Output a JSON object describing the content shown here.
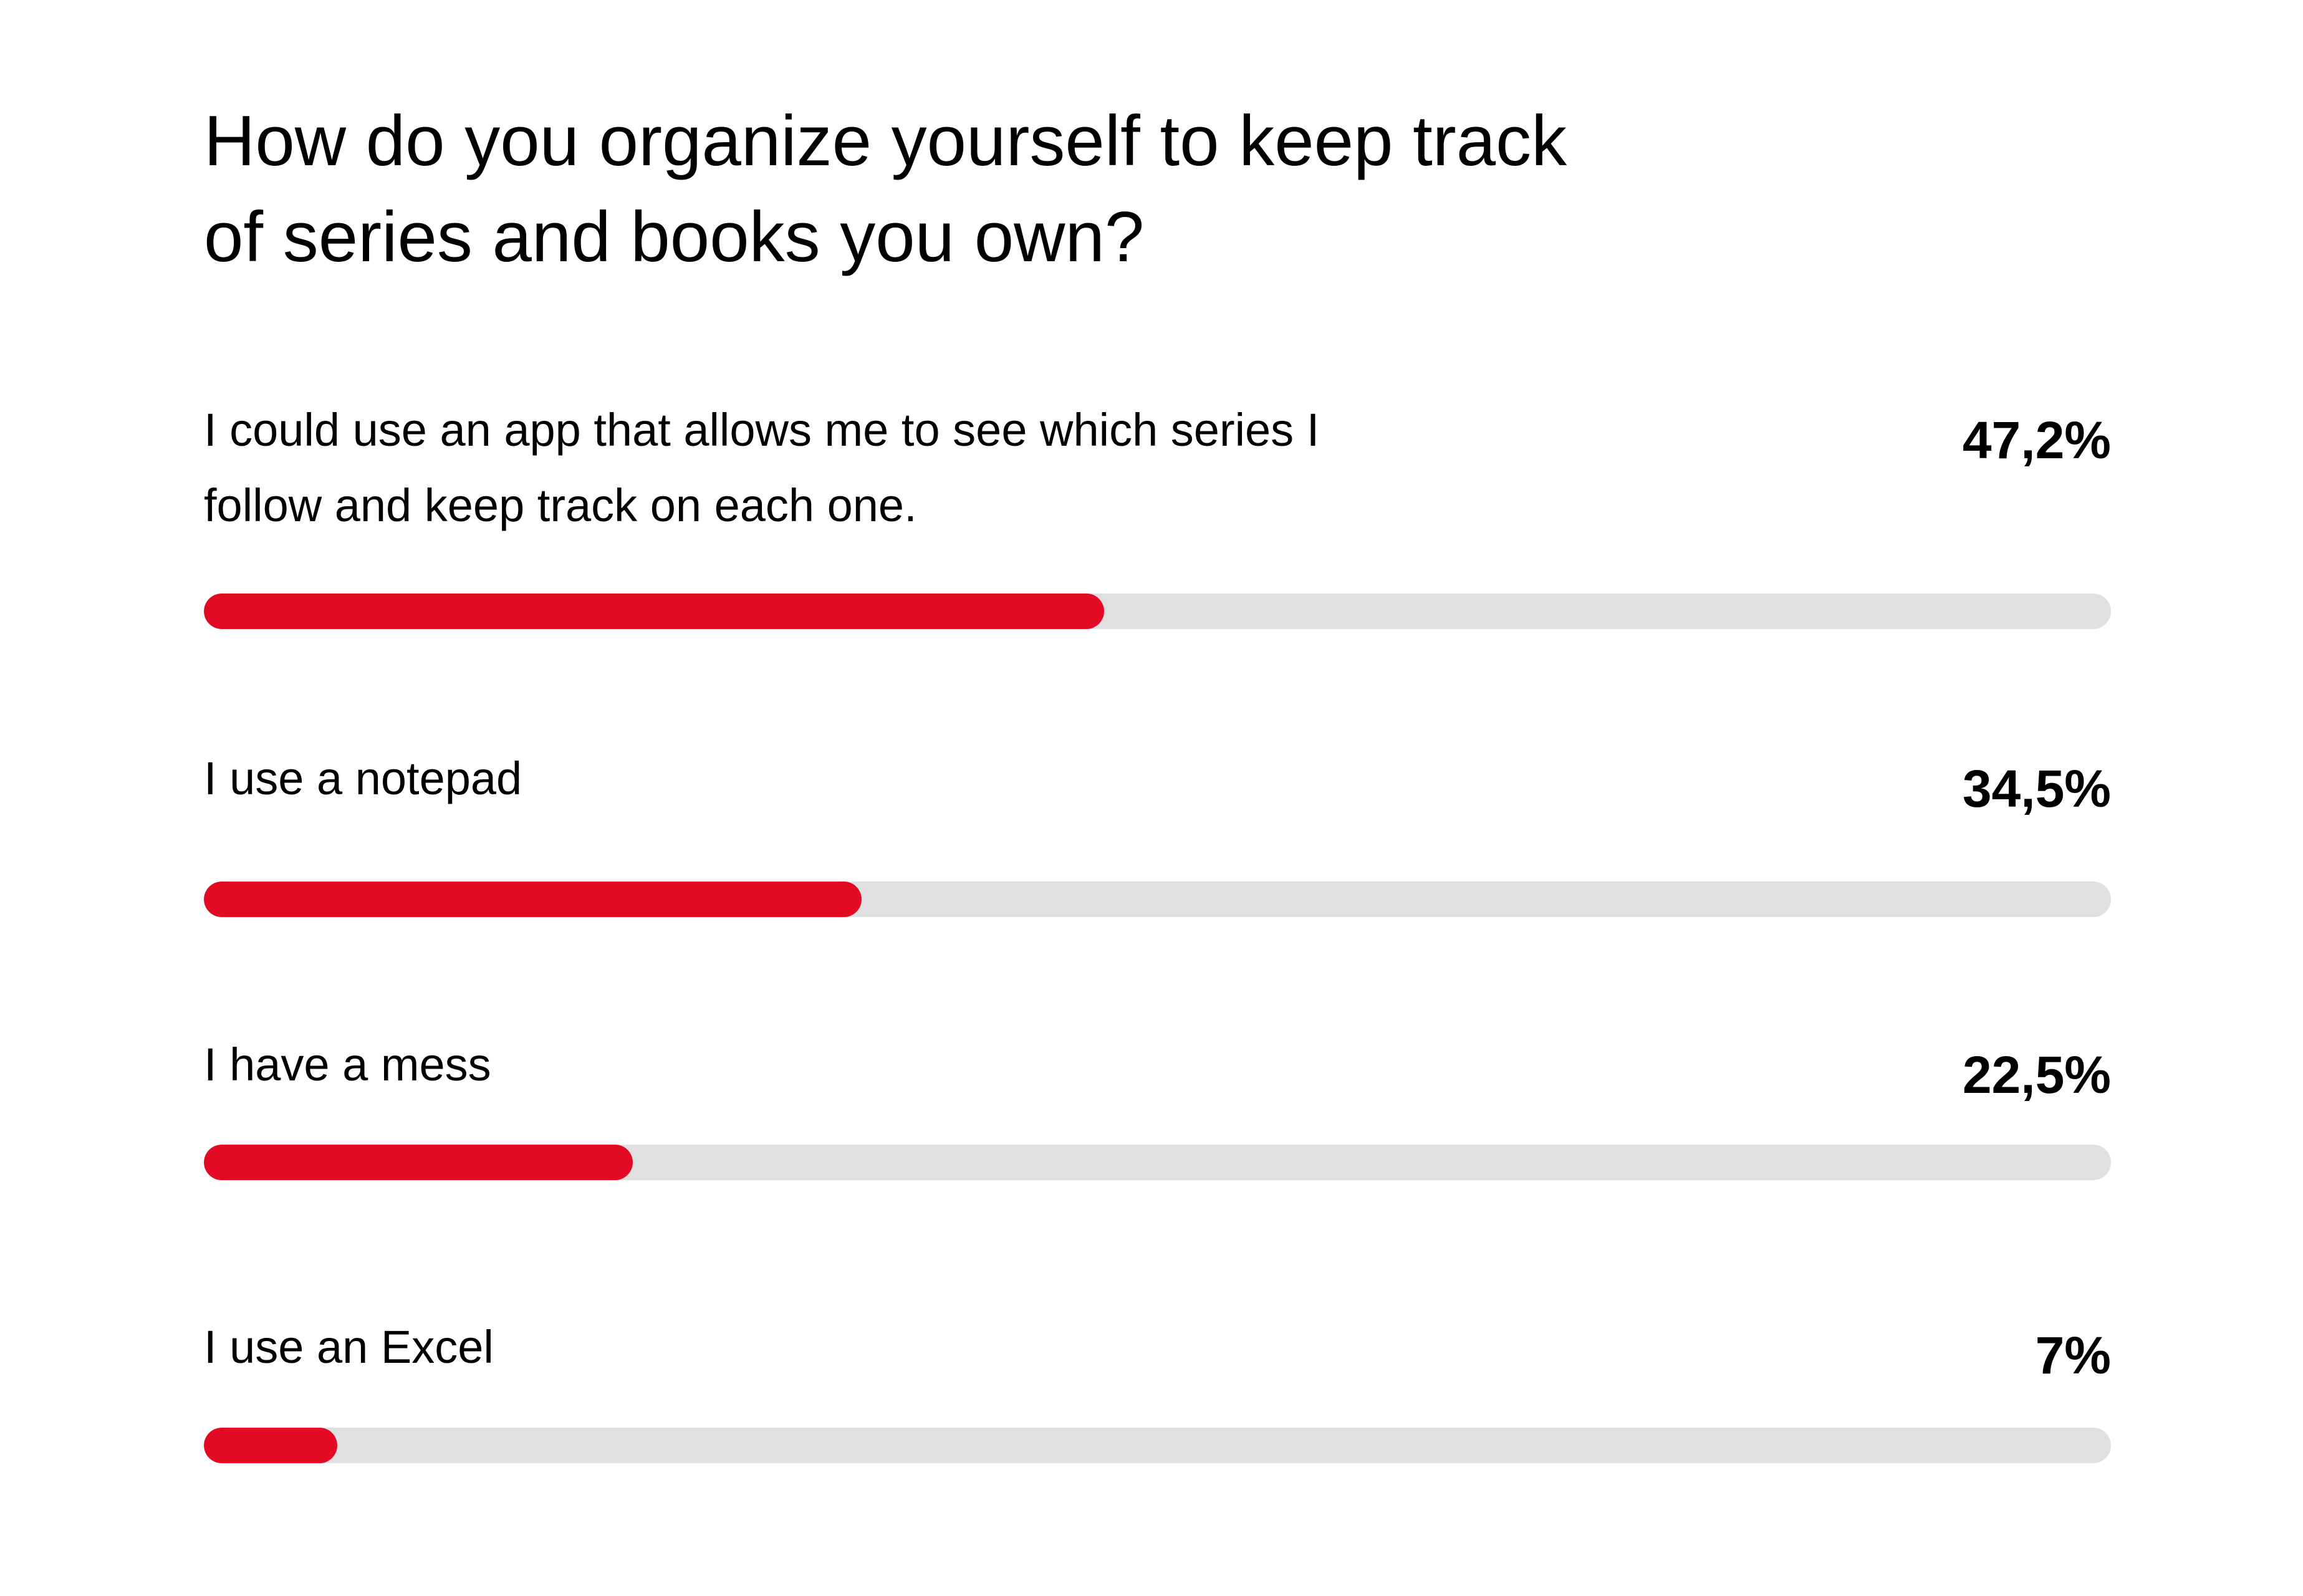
{
  "chart_data": {
    "type": "progress-bar",
    "title": "How do you organize yourself to keep track of series and books you own?",
    "categories": [
      "I could use an app that allows me to see which series I follow and keep track on each one.",
      "I use a notepad",
      "I have a mess",
      "I use an Excel"
    ],
    "values": [
      47.2,
      34.5,
      22.5,
      7
    ],
    "value_labels": [
      "47,2%",
      "34,5%",
      "22,5%",
      "7%"
    ],
    "xlim": [
      0,
      100
    ],
    "color": "#e30b23",
    "track_color": "#e0e0e0"
  }
}
